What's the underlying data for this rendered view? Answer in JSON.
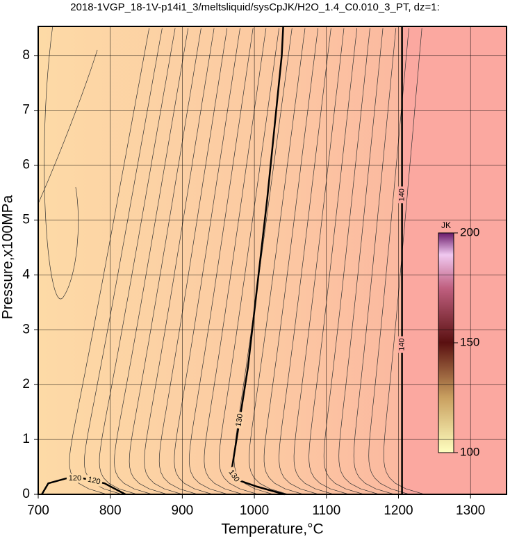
{
  "chart_data": {
    "type": "contour",
    "title": "2018-1VGP_18-1V-p14i1_3/meltsliquid/sysCpJK/H2O_1.4_C0.010_3_PT, dz=1:",
    "x_label": "Temperature,°C",
    "y_label": "Pressure,x100MPa",
    "xlim": [
      700,
      1350
    ],
    "ylim": [
      0,
      8.53
    ],
    "xticks": [
      700,
      800,
      900,
      1000,
      1100,
      1200,
      1300
    ],
    "yticks": [
      0,
      1,
      2,
      3,
      4,
      5,
      6,
      7,
      8
    ],
    "grid": true,
    "contours": [
      {
        "level": 120,
        "x": [
          705,
          714,
          739,
          763,
          792,
          821
        ],
        "y": [
          0,
          0.2,
          0.29,
          0.29,
          0.2,
          0
        ]
      },
      {
        "level": 130,
        "x": [
          1040,
          1038,
          1018,
          991,
          968,
          975,
          1004,
          1042
        ],
        "y": [
          8.53,
          8,
          5.4,
          2.3,
          0.4,
          0.27,
          0.14,
          0
        ]
      },
      {
        "level": 140,
        "x": [
          1205,
          1205
        ],
        "y": [
          0,
          8.53
        ]
      }
    ],
    "colorbar": {
      "label": "JK",
      "lim": [
        100,
        200
      ],
      "ticks": [
        100,
        150,
        200
      ]
    }
  }
}
